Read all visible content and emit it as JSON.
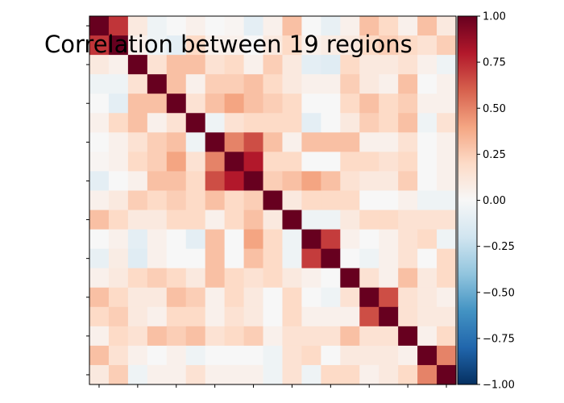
{
  "chart_data": {
    "type": "heatmap",
    "title": "Correlation between 19 regions",
    "xlabel": "",
    "ylabel": "",
    "colormap": "RdBu_r",
    "vmin": -1,
    "vmax": 1,
    "colorbar_ticks": [
      "1.00",
      "0.75",
      "0.50",
      "0.25",
      "0.00",
      "−0.25",
      "−0.50",
      "−0.75",
      "−1.00"
    ],
    "colorbar_tick_values": [
      1.0,
      0.75,
      0.5,
      0.25,
      0.0,
      -0.25,
      -0.5,
      -0.75,
      -1.0
    ],
    "n_regions": 19,
    "matrix": [
      [
        1.0,
        0.72,
        0.1,
        -0.05,
        0.0,
        0.05,
        0.0,
        0.02,
        -0.1,
        0.05,
        0.3,
        0.0,
        -0.08,
        0.05,
        0.3,
        0.2,
        0.05,
        0.3,
        0.1
      ],
      [
        0.72,
        1.0,
        0.05,
        -0.05,
        -0.1,
        0.2,
        0.05,
        0.05,
        0.0,
        0.1,
        0.2,
        0.05,
        0.08,
        0.1,
        0.2,
        0.25,
        0.2,
        0.15,
        0.25
      ],
      [
        0.1,
        0.05,
        1.0,
        0.15,
        0.3,
        0.3,
        0.15,
        0.2,
        0.05,
        0.25,
        0.1,
        -0.1,
        -0.12,
        0.2,
        0.1,
        0.1,
        0.15,
        0.05,
        -0.05
      ],
      [
        -0.05,
        -0.05,
        0.15,
        1.0,
        0.3,
        0.05,
        0.25,
        0.25,
        0.3,
        0.2,
        0.1,
        0.05,
        0.05,
        0.25,
        0.1,
        0.05,
        0.3,
        0.0,
        0.05
      ],
      [
        0.0,
        -0.1,
        0.3,
        0.3,
        1.0,
        0.15,
        0.3,
        0.4,
        0.3,
        0.25,
        0.2,
        0.0,
        0.0,
        0.2,
        0.3,
        0.2,
        0.25,
        0.05,
        0.05
      ],
      [
        0.05,
        0.2,
        0.3,
        0.05,
        0.15,
        1.0,
        -0.05,
        0.15,
        0.2,
        0.2,
        0.2,
        -0.1,
        0.0,
        0.1,
        0.25,
        0.2,
        0.3,
        -0.05,
        0.15
      ],
      [
        0.0,
        0.05,
        0.15,
        0.25,
        0.3,
        -0.05,
        1.0,
        0.5,
        0.65,
        0.3,
        0.05,
        0.3,
        0.3,
        0.3,
        0.05,
        0.05,
        0.15,
        0.0,
        0.05
      ],
      [
        0.02,
        0.05,
        0.2,
        0.25,
        0.4,
        0.15,
        0.5,
        1.0,
        0.8,
        0.2,
        0.2,
        0.0,
        0.0,
        0.2,
        0.2,
        0.15,
        0.2,
        0.0,
        0.05
      ],
      [
        -0.1,
        0.0,
        0.05,
        0.3,
        0.3,
        0.2,
        0.65,
        0.8,
        1.0,
        0.25,
        0.3,
        0.4,
        0.3,
        0.15,
        0.1,
        0.1,
        0.25,
        0.0,
        0.05
      ],
      [
        0.05,
        0.1,
        0.25,
        0.2,
        0.25,
        0.2,
        0.3,
        0.2,
        0.25,
        1.0,
        0.1,
        0.2,
        0.2,
        0.2,
        0.0,
        0.0,
        0.05,
        -0.05,
        -0.05
      ],
      [
        0.3,
        0.2,
        0.1,
        0.1,
        0.2,
        0.2,
        0.05,
        0.2,
        0.3,
        0.1,
        1.0,
        -0.05,
        -0.05,
        0.1,
        0.2,
        0.2,
        0.15,
        0.15,
        0.15
      ],
      [
        0.0,
        0.05,
        -0.1,
        0.05,
        0.0,
        -0.1,
        0.3,
        0.0,
        0.4,
        0.2,
        -0.05,
        1.0,
        0.7,
        0.05,
        0.0,
        0.05,
        0.15,
        0.2,
        -0.05
      ],
      [
        -0.08,
        0.08,
        -0.12,
        0.05,
        0.0,
        0.0,
        0.3,
        0.0,
        0.3,
        0.2,
        -0.05,
        0.7,
        1.0,
        0.0,
        -0.05,
        0.05,
        0.15,
        0.0,
        0.2
      ],
      [
        0.05,
        0.1,
        0.2,
        0.25,
        0.2,
        0.1,
        0.3,
        0.2,
        0.15,
        0.2,
        0.1,
        0.05,
        0.0,
        1.0,
        0.15,
        0.05,
        0.3,
        0.1,
        0.2
      ],
      [
        0.3,
        0.2,
        0.1,
        0.1,
        0.3,
        0.25,
        0.05,
        0.2,
        0.1,
        0.0,
        0.2,
        0.0,
        -0.05,
        0.15,
        1.0,
        0.65,
        0.15,
        0.1,
        0.05
      ],
      [
        0.2,
        0.25,
        0.1,
        0.05,
        0.2,
        0.2,
        0.05,
        0.15,
        0.1,
        0.0,
        0.2,
        0.05,
        0.05,
        0.05,
        0.65,
        1.0,
        0.15,
        0.1,
        0.1
      ],
      [
        0.05,
        0.2,
        0.15,
        0.3,
        0.25,
        0.3,
        0.15,
        0.2,
        0.25,
        0.05,
        0.15,
        0.15,
        0.15,
        0.3,
        0.15,
        0.15,
        1.0,
        0.05,
        0.2
      ],
      [
        0.3,
        0.15,
        0.05,
        0.0,
        0.05,
        -0.05,
        0.0,
        0.0,
        0.0,
        -0.05,
        0.15,
        0.2,
        0.0,
        0.1,
        0.1,
        0.1,
        0.05,
        1.0,
        0.5
      ],
      [
        0.1,
        0.25,
        -0.05,
        0.05,
        0.05,
        0.15,
        0.05,
        0.05,
        0.05,
        -0.05,
        0.15,
        -0.05,
        0.2,
        0.2,
        0.05,
        0.1,
        0.2,
        0.5,
        1.0
      ]
    ]
  }
}
